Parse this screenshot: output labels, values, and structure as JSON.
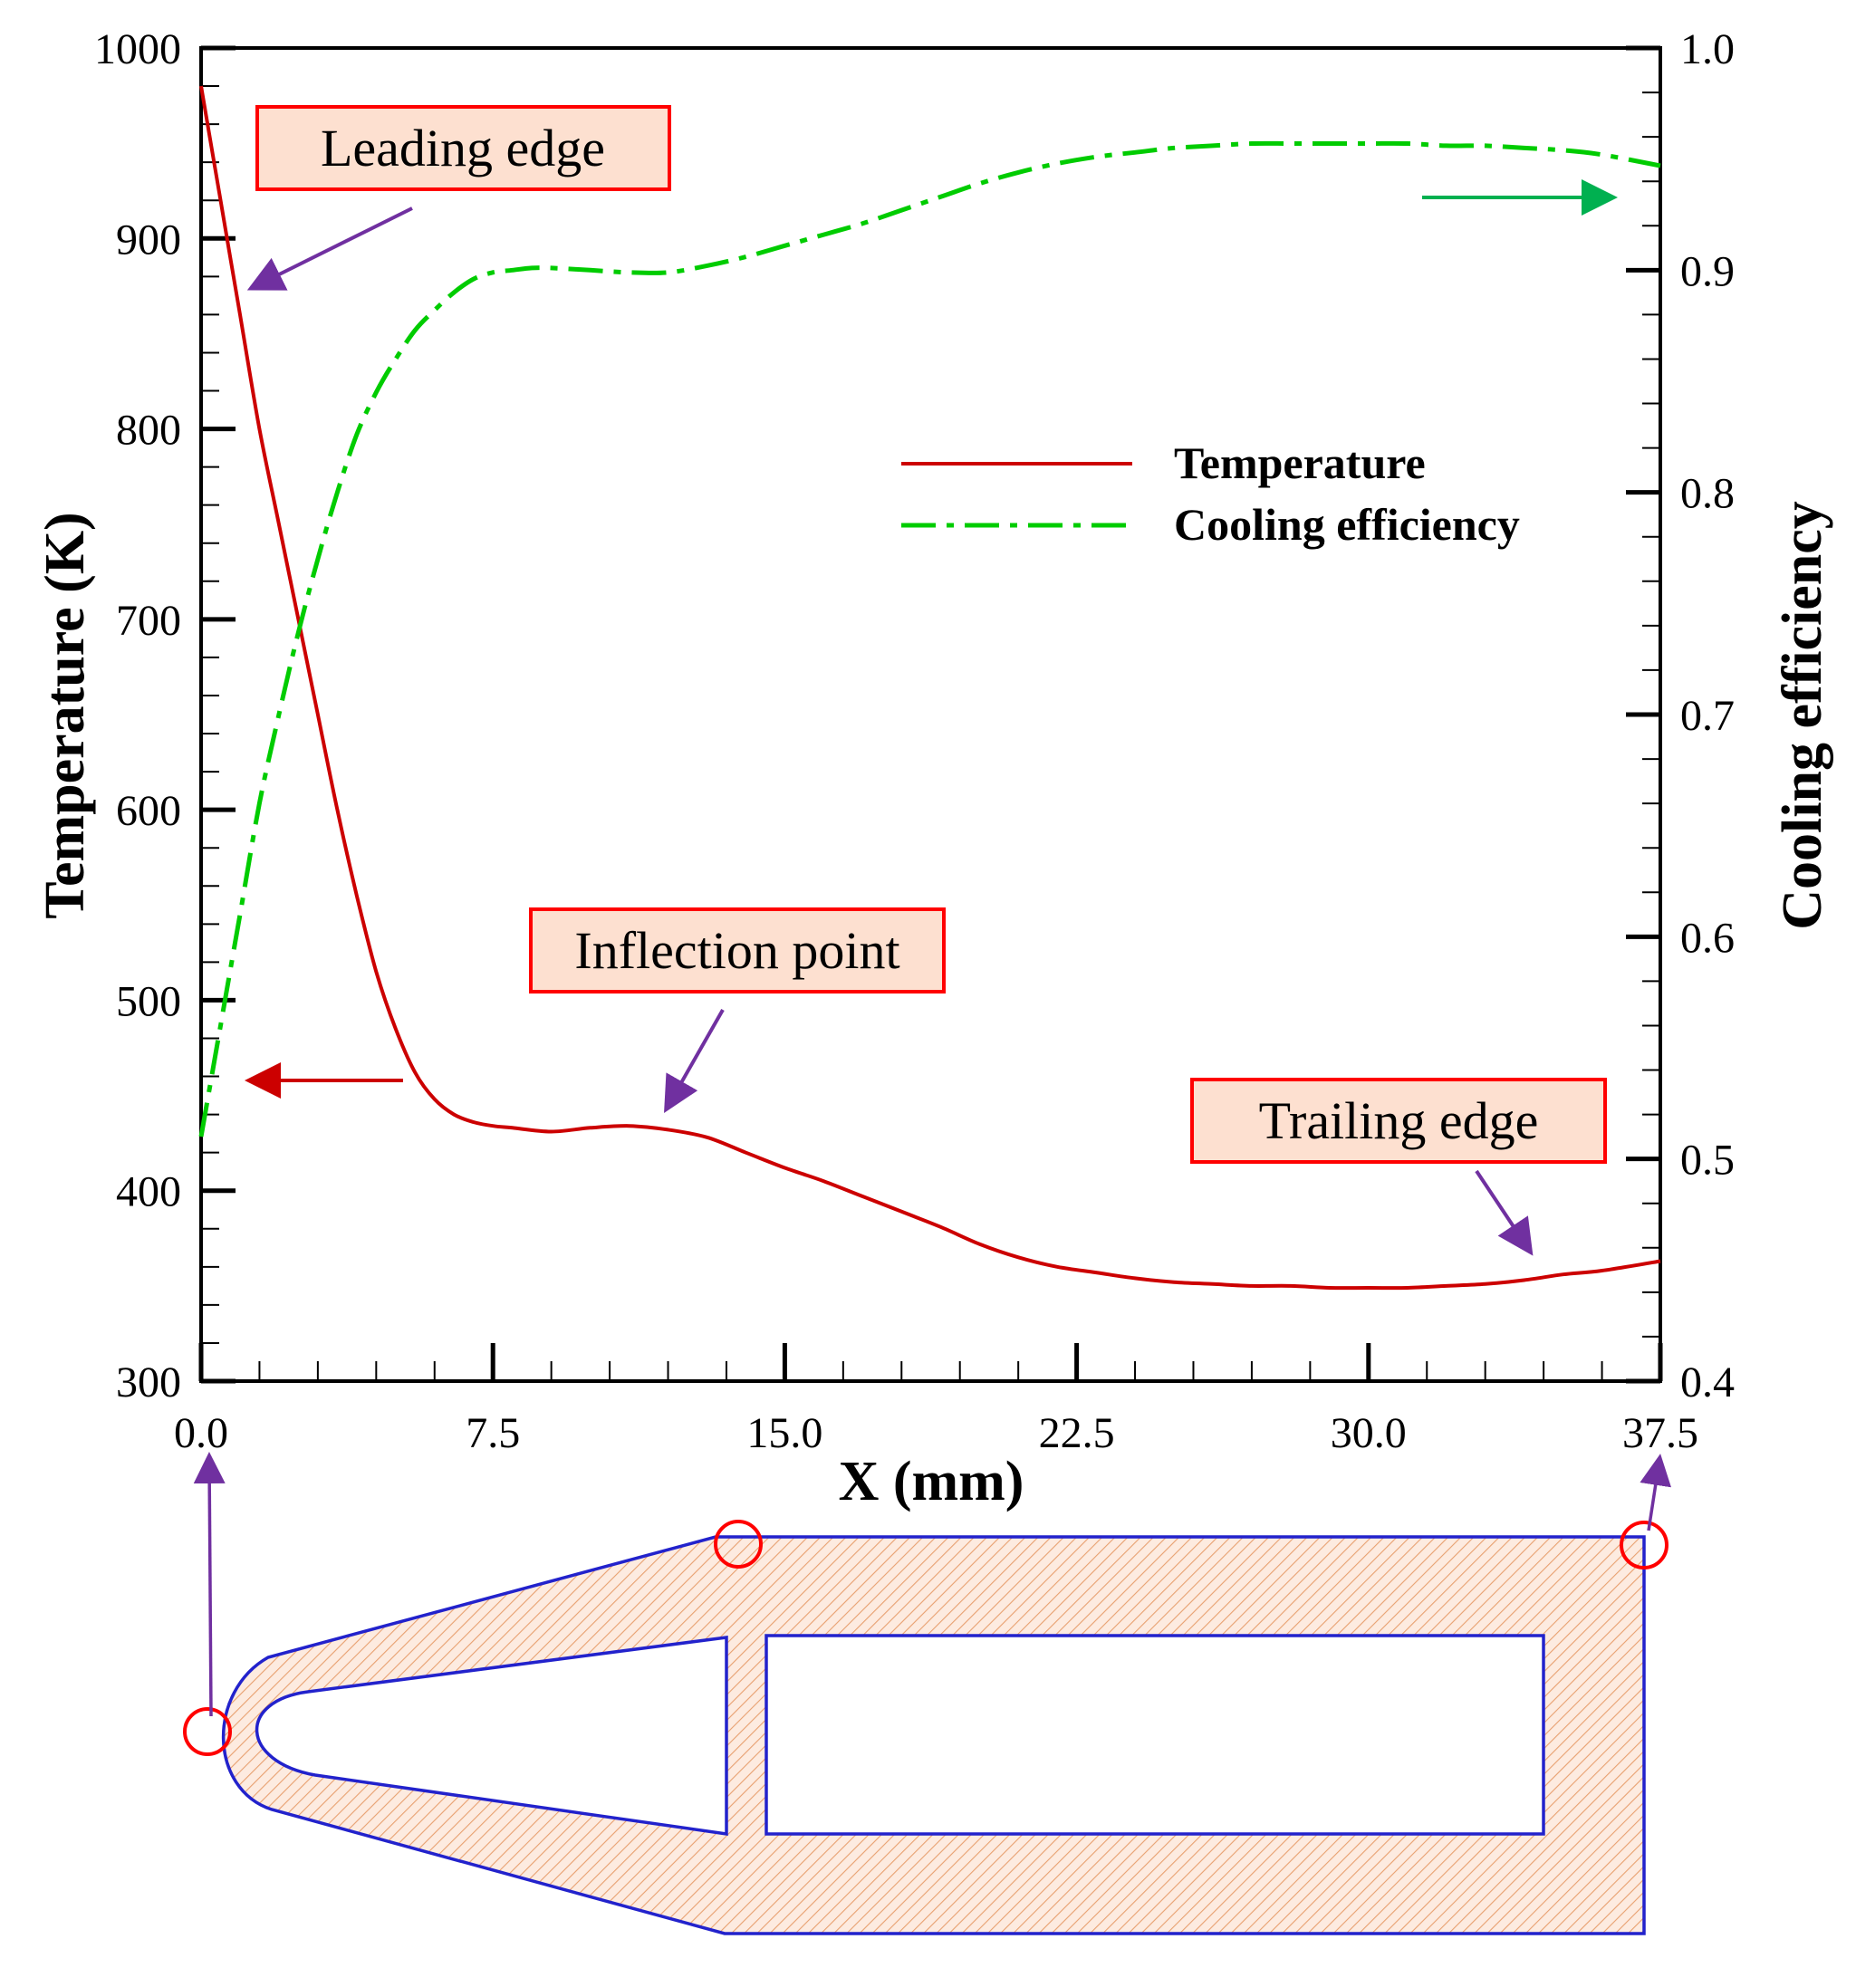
{
  "chart_data": {
    "type": "line",
    "title": "",
    "xlabel": "X (mm)",
    "ylabel": "Temperature (K)",
    "y2label": "Cooling efficiency",
    "xlim": [
      0,
      37.5
    ],
    "ylim": [
      300,
      1000
    ],
    "y2lim": [
      0.4,
      1.0
    ],
    "xticks": [
      "0.0",
      "7.5",
      "15.0",
      "22.5",
      "30.0",
      "37.5"
    ],
    "yticks": [
      "300",
      "400",
      "500",
      "600",
      "700",
      "800",
      "900",
      "1000"
    ],
    "y2ticks": [
      "0.4",
      "0.5",
      "0.6",
      "0.7",
      "0.8",
      "0.9",
      "1.0"
    ],
    "legend_position": "upper-right",
    "series": [
      {
        "name": "Temperature",
        "axis": "left",
        "color": "#cc0000",
        "style": "solid",
        "x": [
          0,
          0.5,
          1.0,
          1.5,
          2.0,
          2.5,
          3.0,
          3.5,
          4.0,
          4.5,
          5.0,
          5.5,
          6.0,
          6.5,
          7.0,
          7.5,
          8.0,
          9.0,
          10.0,
          11.0,
          12.0,
          13.0,
          14.0,
          15.0,
          16.0,
          17.0,
          18.0,
          19.0,
          20.0,
          21.0,
          22.0,
          23.0,
          24.0,
          25.0,
          26.0,
          27.0,
          28.0,
          29.0,
          30.0,
          31.0,
          32.0,
          33.0,
          34.0,
          35.0,
          36.0,
          37.5
        ],
        "values": [
          980,
          920,
          860,
          800,
          750,
          700,
          650,
          600,
          555,
          515,
          485,
          462,
          448,
          440,
          436,
          434,
          433,
          431,
          433,
          434,
          432,
          428,
          420,
          412,
          405,
          397,
          389,
          381,
          372,
          365,
          360,
          357,
          354,
          352,
          351,
          350,
          350,
          349,
          349,
          349,
          350,
          351,
          353,
          356,
          358,
          363
        ]
      },
      {
        "name": "Cooling efficiency",
        "axis": "right",
        "color": "#00cc00",
        "style": "dashdot",
        "x": [
          0,
          0.5,
          1.0,
          1.5,
          2.0,
          2.5,
          3.0,
          3.5,
          4.0,
          4.5,
          5.0,
          5.5,
          6.0,
          6.5,
          7.0,
          7.5,
          8.0,
          8.5,
          9.0,
          10.0,
          11.0,
          12.0,
          13.0,
          14.0,
          15.0,
          16.0,
          17.0,
          18.0,
          19.0,
          20.0,
          21.0,
          22.0,
          23.0,
          24.0,
          25.0,
          26.0,
          27.0,
          28.0,
          29.0,
          30.0,
          31.0,
          32.0,
          33.0,
          34.0,
          35.0,
          36.0,
          37.5
        ],
        "values": [
          0.51,
          0.56,
          0.61,
          0.66,
          0.7,
          0.737,
          0.77,
          0.8,
          0.826,
          0.845,
          0.86,
          0.873,
          0.882,
          0.89,
          0.896,
          0.899,
          0.9,
          0.901,
          0.901,
          0.9,
          0.899,
          0.899,
          0.902,
          0.906,
          0.911,
          0.916,
          0.921,
          0.927,
          0.933,
          0.939,
          0.944,
          0.948,
          0.951,
          0.953,
          0.955,
          0.956,
          0.957,
          0.957,
          0.957,
          0.957,
          0.957,
          0.956,
          0.956,
          0.955,
          0.954,
          0.952,
          0.947
        ]
      }
    ],
    "annotations": [
      {
        "text": "Leading edge"
      },
      {
        "text": "Inflection point"
      },
      {
        "text": "Trailing edge"
      }
    ]
  },
  "colors": {
    "temperature": "#cc0000",
    "efficiency": "#00cc00",
    "annotation_fill": "#fde0d0",
    "annotation_border": "#ff0000",
    "pointer_arrow": "#7030a0",
    "efficiency_arrow": "#00b050",
    "temperature_arrow": "#cc0000",
    "airfoil_outline": "#2222cc",
    "airfoil_hatch": "#e8a070",
    "marker_circle": "#ff0000"
  }
}
